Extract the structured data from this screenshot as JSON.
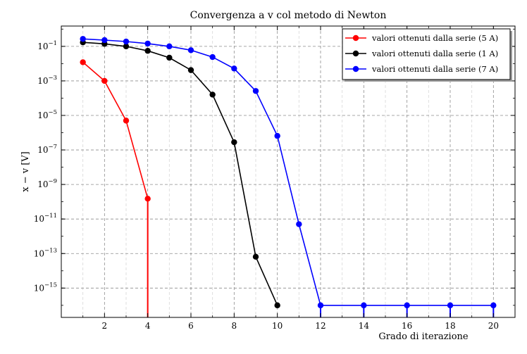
{
  "chart_data": {
    "type": "line",
    "title": "Convergenza a v col metodo di Newton",
    "xlabel": "Grado di iterazione",
    "ylabel": "x − v [V]",
    "yscale": "log",
    "xlim": [
      0,
      21
    ],
    "ylim": [
      2e-17,
      1.5
    ],
    "xticks": [
      2,
      4,
      6,
      8,
      10,
      12,
      14,
      16,
      18,
      20
    ],
    "xtick_labels": [
      "2",
      "4",
      "6",
      "8",
      "10",
      "12",
      "14",
      "16",
      "18",
      "20"
    ],
    "yticks": [
      1e-15,
      1e-13,
      1e-11,
      1e-09,
      1e-07,
      1e-05,
      0.001,
      0.1
    ],
    "ytick_labels": [
      {
        "base": "10",
        "exp": "−15"
      },
      {
        "base": "10",
        "exp": "−13"
      },
      {
        "base": "10",
        "exp": "−11"
      },
      {
        "base": "10",
        "exp": "−9"
      },
      {
        "base": "10",
        "exp": "−7"
      },
      {
        "base": "10",
        "exp": "−5"
      },
      {
        "base": "10",
        "exp": "−3"
      },
      {
        "base": "10",
        "exp": "−1"
      }
    ],
    "grid": true,
    "legend_position": "top-right",
    "series": [
      {
        "name": "valori ottenuti dalla serie (5 A)",
        "color": "#ff0000",
        "x": [
          1,
          2,
          3,
          4
        ],
        "y": [
          0.012,
          0.001,
          5e-06,
          1.5e-10
        ],
        "drops_to_zero": [
          4
        ]
      },
      {
        "name": "valori ottenuti dalla serie (1 A)",
        "color": "#000000",
        "x": [
          1,
          2,
          3,
          4,
          5,
          6,
          7,
          8,
          9,
          10
        ],
        "y": [
          0.17,
          0.14,
          0.1,
          0.055,
          0.022,
          0.0042,
          0.00016,
          2.8e-07,
          6.5e-14,
          1e-16
        ],
        "drops_to_zero": []
      },
      {
        "name": "valori ottenuti dalla serie (7 A)",
        "color": "#0000ff",
        "x": [
          1,
          2,
          3,
          4,
          5,
          6,
          7,
          8,
          9,
          10,
          11,
          12,
          14,
          16,
          18,
          20
        ],
        "y": [
          0.27,
          0.23,
          0.19,
          0.145,
          0.1,
          0.06,
          0.024,
          0.0052,
          0.00026,
          6.5e-07,
          5e-12,
          1e-16,
          1e-16,
          1e-16,
          1e-16,
          1e-16
        ],
        "drops_to_zero": [
          12,
          14,
          16,
          18,
          20
        ]
      }
    ]
  }
}
